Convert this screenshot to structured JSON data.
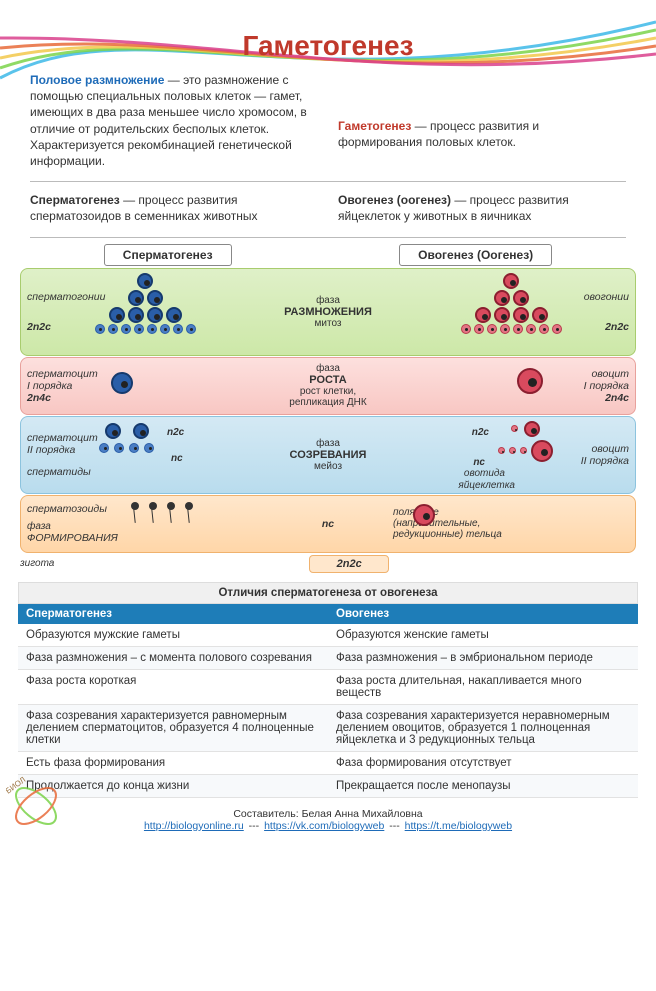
{
  "title": "Гаметогенез",
  "title_color": "#c0392b",
  "intro": {
    "left_term": "Половое размножение",
    "left_text": " — это размножение с помощью специальных половых клеток — гамет, имеющих в два раза меньшее число хромосом, в отличие от родительских бесполых клеток. Характеризуется рекомбинацией генетической информации.",
    "right_term": "Гаметогенез",
    "right_text": " — процесс развития и формирования половых клеток."
  },
  "defs": {
    "left_term": "Сперматогенез",
    "left_text": " — процесс развития сперматозоидов в семенниках животных",
    "right_term": "Овогенез (оогенез)",
    "right_text": " — процесс развития яйцеклеток у животных в яичниках"
  },
  "diagram": {
    "col_left": "Сперматогенез",
    "col_right": "Овогенез (Оогенез)",
    "phase1": {
      "name": "фаза\nРАЗМНОЖЕНИЯ",
      "sub": "митоз",
      "left": "сперматогонии",
      "right": "овогонии",
      "ploidy": "2n2c",
      "bg": "#dff0c8"
    },
    "phase2": {
      "name": "фаза\nРОСТА",
      "sub": "рост клетки,\nрепликация ДНК",
      "left_a": "сперматоцит\nI порядка",
      "right_a": "овоцит\nI порядка",
      "ploidy": "2n4c",
      "bg": "#fde0de"
    },
    "phase3": {
      "name": "фаза\nСОЗРЕВАНИЯ",
      "sub": "мейоз",
      "left_a": "сперматоцит\nII порядка",
      "right_a": "овоцит\nII порядка",
      "left_b": "сперматиды",
      "p1": "n2c",
      "p2": "nc",
      "ovotida": "овотида",
      "egg": "яйцеклетка",
      "bg": "#d4e9f4"
    },
    "phase4": {
      "name": "фаза\nФОРМИРОВАНИЯ",
      "left": "сперматозоиды",
      "ploidy": "nc",
      "polar": "полярные\n(направительные,\nредукционные) тельца",
      "zygote_lbl": "зигота",
      "zygote_ploidy": "2n2c",
      "bg": "#ffe7cc"
    },
    "cell_colors": {
      "sperm_fill": "#2a5ea8",
      "sperm_border": "#163a6d",
      "ovo_fill": "#d94a5e",
      "ovo_border": "#8b1f30"
    }
  },
  "table": {
    "title": "Отличия сперматогенеза от овогенеза",
    "head_left": "Сперматогенез",
    "head_right": "Овогенез",
    "header_bg": "#1e7db8",
    "rows": [
      [
        "Образуются мужские гаметы",
        "Образуются женские гаметы"
      ],
      [
        "Фаза размножения – с момента полового созревания",
        "Фаза размножения – в эмбриональном периоде"
      ],
      [
        "Фаза роста короткая",
        "Фаза роста длительная, накапливается много веществ"
      ],
      [
        "Фаза созревания характеризуется равномерным делением сперматоцитов, образуется 4 полноценные клетки",
        "Фаза созревания характеризуется неравномерным делением овоцитов, образуется 1 полноценная яйцеклетка и 3 редукционных тельца"
      ],
      [
        "Есть фаза формирования",
        "Фаза формирования отсутствует"
      ],
      [
        "Продолжается до конца жизни",
        "Прекращается после менопаузы"
      ]
    ]
  },
  "footer": {
    "author_label": "Составитель: ",
    "author": "Белая Анна Михайловна",
    "links": [
      "http://biologyonline.ru",
      "https://vk.com/biologyweb",
      "https://t.me/biologyweb"
    ],
    "sep": " --- "
  },
  "wave_colors": [
    "#3db8e8",
    "#7bd34a",
    "#f2c84b",
    "#e86b3a",
    "#d9418c"
  ]
}
